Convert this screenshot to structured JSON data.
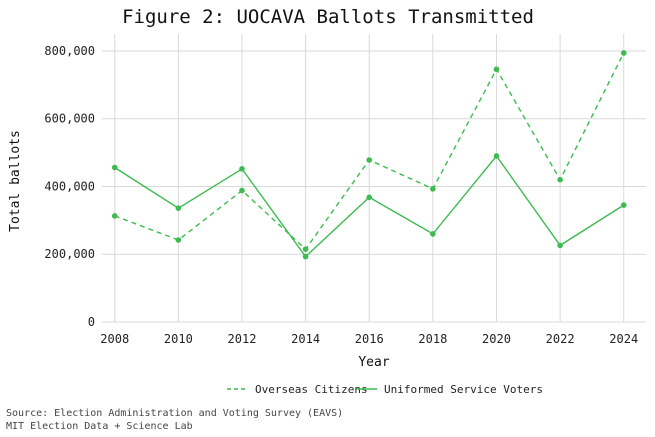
{
  "chart_data": {
    "type": "line",
    "title": "Figure 2: UOCAVA Ballots Transmitted",
    "xlabel": "Year",
    "ylabel": "Total ballots",
    "x": [
      2008,
      2010,
      2012,
      2014,
      2016,
      2018,
      2020,
      2022,
      2024
    ],
    "x_tick_labels": [
      "2008",
      "2010",
      "2012",
      "2014",
      "2016",
      "2018",
      "2020",
      "2022",
      "2024"
    ],
    "y_ticks": [
      0,
      200000,
      400000,
      600000,
      800000
    ],
    "y_tick_labels": [
      "0",
      "200,000",
      "400,000",
      "600,000",
      "800,000"
    ],
    "xlim": [
      2007.6,
      2024.7
    ],
    "ylim": [
      0,
      850000
    ],
    "grid": true,
    "legend_position": "bottom",
    "series": [
      {
        "name": "Overseas Citizens",
        "line_style": "dashed",
        "color": "#3dbb50",
        "values": [
          313000,
          242000,
          388000,
          215000,
          478000,
          393000,
          746000,
          420000,
          794000
        ]
      },
      {
        "name": "Uniformed Service Voters",
        "line_style": "solid",
        "color": "#3dbb50",
        "values": [
          456000,
          336000,
          452000,
          193000,
          368000,
          260000,
          490000,
          226000,
          345000
        ]
      }
    ],
    "caption": [
      "Source: Election Administration and Voting Survey (EAVS)",
      "MIT Election Data + Science Lab"
    ]
  }
}
